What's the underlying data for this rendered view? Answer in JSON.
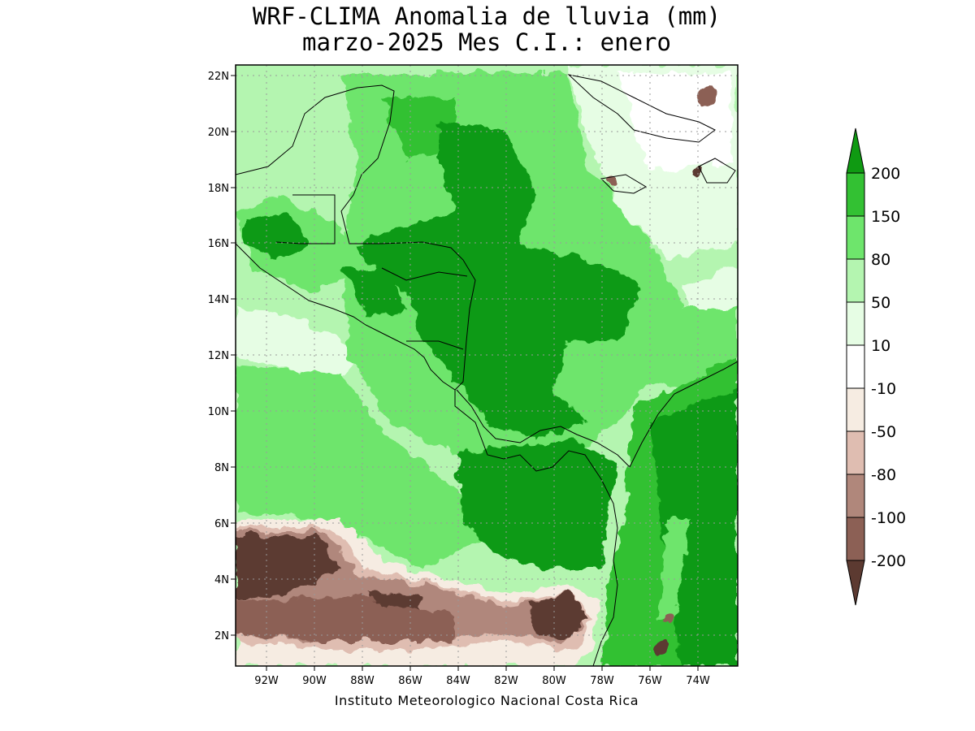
{
  "title_line1": "WRF-CLIMA Anomalia de lluvia (mm)",
  "title_line2": "marzo-2025 Mes C.I.: enero",
  "credit": "Instituto Meteorologico Nacional Costa Rica",
  "y_ticks": [
    "22N",
    "20N",
    "18N",
    "16N",
    "14N",
    "12N",
    "10N",
    "8N",
    "6N",
    "4N",
    "2N"
  ],
  "x_ticks": [
    "92W",
    "90W",
    "88W",
    "86W",
    "84W",
    "82W",
    "80W",
    "78W",
    "76W",
    "74W"
  ],
  "colorbar": {
    "labels": [
      "200",
      "150",
      "80",
      "50",
      "10",
      "-10",
      "-50",
      "-80",
      "-100",
      "-200"
    ],
    "colors": {
      "gt200": "#0f9a12",
      "150_200": "#33c133",
      "80_150": "#6ee56c",
      "50_80": "#b4f5b0",
      "10_50": "#e6fde4",
      "m10_10": "#ffffff",
      "m50_m10": "#f6ece2",
      "m80_m50": "#dfbdb1",
      "m100_m80": "#b0877b",
      "m200_m100": "#8c6055",
      "lt_m200": "#5c3a31"
    }
  }
}
